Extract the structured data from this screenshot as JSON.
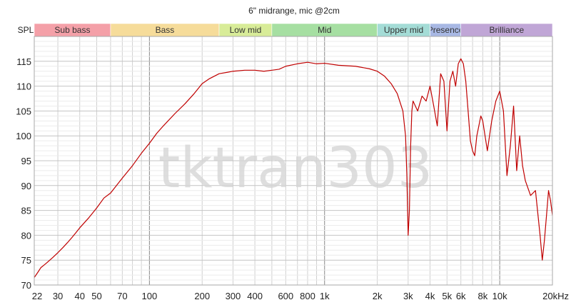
{
  "chart_data": {
    "type": "line",
    "title": "6\" midrange, mic @2cm",
    "ylabel": "SPL",
    "watermark": "tktran303",
    "x_scale": "log",
    "xlim": [
      22,
      20000
    ],
    "ylim": [
      70,
      120
    ],
    "y_ticks": [
      70,
      75,
      80,
      85,
      90,
      95,
      100,
      105,
      110,
      115
    ],
    "x_tick_labels": [
      {
        "value": 22,
        "label": "22"
      },
      {
        "value": 30,
        "label": "30"
      },
      {
        "value": 40,
        "label": "40"
      },
      {
        "value": 50,
        "label": "50"
      },
      {
        "value": 70,
        "label": "70"
      },
      {
        "value": 100,
        "label": "100"
      },
      {
        "value": 200,
        "label": "200"
      },
      {
        "value": 300,
        "label": "300"
      },
      {
        "value": 400,
        "label": "400"
      },
      {
        "value": 600,
        "label": "600"
      },
      {
        "value": 800,
        "label": "800"
      },
      {
        "value": 1000,
        "label": "1k"
      },
      {
        "value": 2000,
        "label": "2k"
      },
      {
        "value": 3000,
        "label": "3k"
      },
      {
        "value": 4000,
        "label": "4k"
      },
      {
        "value": 5000,
        "label": "5k"
      },
      {
        "value": 6000,
        "label": "6k"
      },
      {
        "value": 8000,
        "label": "8k"
      },
      {
        "value": 10000,
        "label": "10k"
      },
      {
        "value": 20000,
        "label": "20kHz"
      }
    ],
    "bands": [
      {
        "name": "Sub bass",
        "from": 22,
        "to": 60,
        "color": "#f4a0a8"
      },
      {
        "name": "Bass",
        "from": 60,
        "to": 250,
        "color": "#f6dc9a"
      },
      {
        "name": "Low mid",
        "from": 250,
        "to": 500,
        "color": "#d8ec98"
      },
      {
        "name": "Mid",
        "from": 500,
        "to": 2000,
        "color": "#a6dfa2"
      },
      {
        "name": "Upper mid",
        "from": 2000,
        "to": 4000,
        "color": "#a4dcd6"
      },
      {
        "name": "Presence",
        "from": 4000,
        "to": 6000,
        "color": "#a8b8e4"
      },
      {
        "name": "Brilliance",
        "from": 6000,
        "to": 20000,
        "color": "#c0a6d6"
      }
    ],
    "series": [
      {
        "color": "#c00000",
        "x": [
          22,
          23,
          24,
          25,
          26,
          28,
          30,
          32,
          34,
          36,
          38,
          40,
          45,
          50,
          55,
          60,
          70,
          80,
          90,
          100,
          110,
          120,
          140,
          160,
          180,
          200,
          220,
          250,
          280,
          300,
          350,
          400,
          450,
          500,
          550,
          600,
          700,
          800,
          900,
          1000,
          1200,
          1500,
          1800,
          2000,
          2200,
          2400,
          2600,
          2800,
          2900,
          2950,
          3000,
          3050,
          3100,
          3150,
          3200,
          3400,
          3600,
          3800,
          4000,
          4200,
          4400,
          4600,
          4800,
          5000,
          5200,
          5400,
          5600,
          5800,
          6000,
          6200,
          6400,
          6600,
          6800,
          7000,
          7200,
          7400,
          7600,
          7800,
          8000,
          8500,
          9000,
          9500,
          10000,
          10500,
          11000,
          11500,
          12000,
          12500,
          13000,
          13500,
          14000,
          15000,
          16000,
          17000,
          17500,
          18000,
          18500,
          19000,
          19500,
          20000
        ],
        "y": [
          71.5,
          72.5,
          73.5,
          74,
          74.5,
          75.5,
          76.5,
          77.5,
          78.5,
          79.5,
          80.5,
          81.5,
          83.5,
          85.5,
          87.5,
          88.5,
          91.5,
          94,
          96.5,
          98.5,
          100.5,
          102,
          104.5,
          106.5,
          108.5,
          110.5,
          111.5,
          112.5,
          112.8,
          113,
          113.2,
          113.2,
          113,
          113.2,
          113.4,
          114,
          114.5,
          114.8,
          114.5,
          114.6,
          114.2,
          114.0,
          113.5,
          113,
          112,
          110.5,
          108.5,
          105,
          100,
          92,
          80,
          85,
          98,
          105,
          107,
          105,
          108,
          107,
          110,
          106,
          102,
          112.5,
          111,
          101,
          111,
          113,
          110,
          114.5,
          115.5,
          114.5,
          111,
          105,
          99,
          97,
          96,
          100,
          102,
          104,
          103,
          97,
          103,
          107,
          109,
          105,
          92,
          98,
          106,
          93,
          100,
          94,
          91,
          88,
          89,
          80,
          75,
          79,
          84,
          89,
          87,
          84
        ]
      }
    ]
  }
}
